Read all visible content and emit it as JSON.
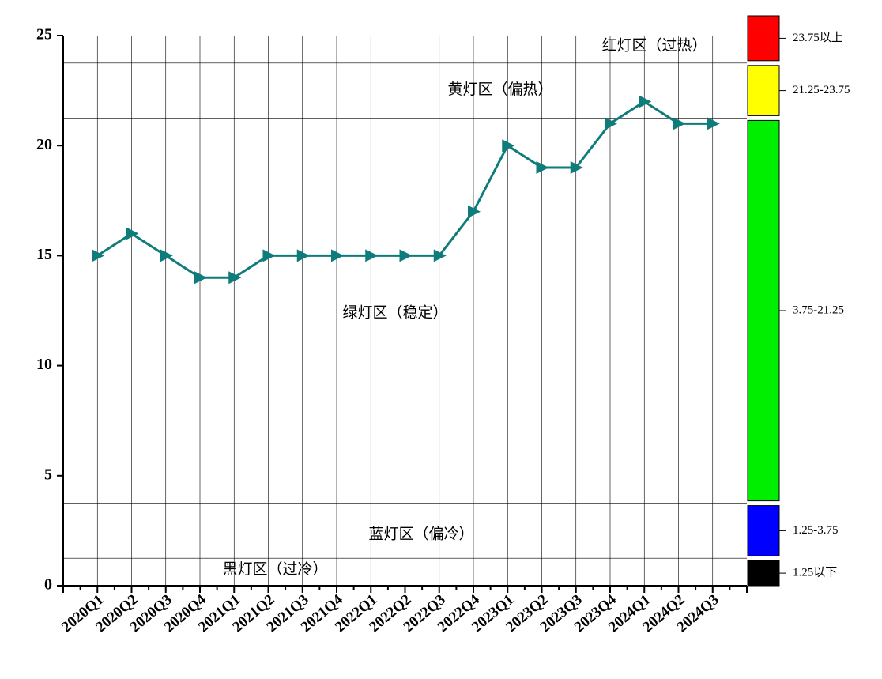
{
  "chart_data": {
    "type": "line",
    "categories": [
      "2020Q1",
      "2020Q2",
      "2020Q3",
      "2020Q4",
      "2021Q1",
      "2021Q2",
      "2021Q3",
      "2021Q4",
      "2022Q1",
      "2022Q2",
      "2022Q3",
      "2022Q4",
      "2023Q1",
      "2023Q2",
      "2023Q3",
      "2023Q4",
      "2024Q1",
      "2024Q2",
      "2024Q3"
    ],
    "series": [
      {
        "color": "#0e7c7b",
        "values": [
          15,
          16,
          15,
          14,
          14,
          15,
          15,
          15,
          15,
          15,
          15,
          17,
          20,
          19,
          19,
          21,
          22,
          21,
          21
        ]
      }
    ],
    "ylim": [
      0,
      25
    ],
    "yticks": [
      0,
      5,
      10,
      15,
      20,
      25
    ],
    "zones": [
      {
        "name": "红灯区（过热）",
        "range_label": "23.75以上",
        "color": "#ff0000",
        "lower": 23.75
      },
      {
        "name": "黄灯区（偏热）",
        "range_label": "21.25-23.75",
        "color": "#ffff00",
        "lower": 21.25,
        "upper": 23.75
      },
      {
        "name": "绿灯区（稳定）",
        "range_label": "3.75-21.25",
        "color": "#00ee00",
        "lower": 3.75,
        "upper": 21.25
      },
      {
        "name": "蓝灯区（偏冷）",
        "range_label": "1.25-3.75",
        "color": "#0000ff",
        "lower": 1.25,
        "upper": 3.75
      },
      {
        "name": "黑灯区（过冷）",
        "range_label": "1.25以下",
        "color": "#000000",
        "upper": 1.25
      }
    ]
  }
}
